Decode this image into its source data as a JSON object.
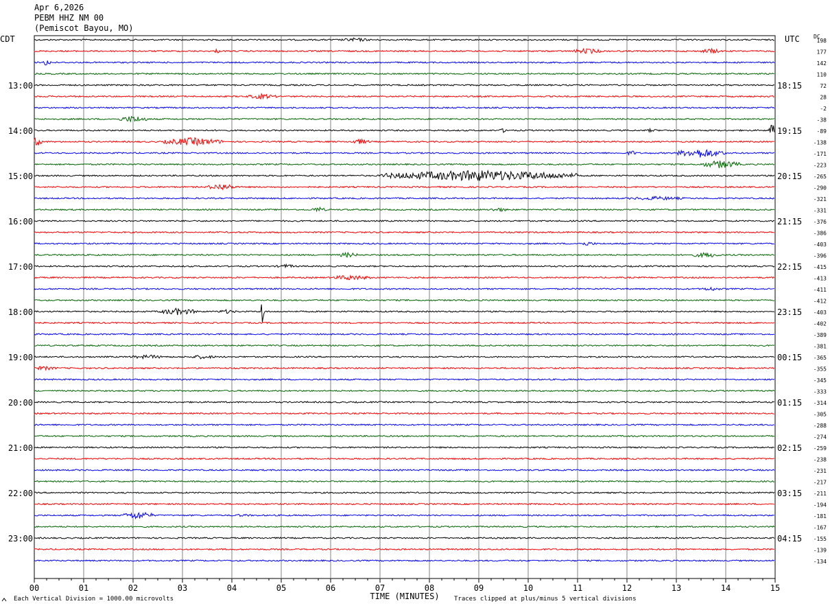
{
  "header": {
    "date": "Apr 6,2026",
    "station": "PEBM HHZ NM 00",
    "location": "(Pemiscot Bayou, MO)"
  },
  "labels": {
    "left_timezone": "CDT",
    "right_timezone": "UTC",
    "dc": "DC",
    "x_axis_title": "TIME (MINUTES)",
    "scale_note": "Each Vertical Division = 1000.00 microvolts",
    "clip_note": "Traces clipped at plus/minus 5 vertical divisions"
  },
  "colors": {
    "trace_cycle": [
      "#000000",
      "#ff0000",
      "#0000ff",
      "#006400"
    ],
    "grid": "#808080"
  },
  "chart_data": {
    "type": "line",
    "title": "PEBM HHZ NM 00",
    "x_ticks": [
      "00",
      "01",
      "02",
      "03",
      "04",
      "05",
      "06",
      "07",
      "08",
      "09",
      "10",
      "11",
      "12",
      "13",
      "14",
      "15"
    ],
    "xlim": [
      0,
      15
    ],
    "left_hour_labels": [
      {
        "trace": 4,
        "label": "13:00"
      },
      {
        "trace": 8,
        "label": "14:00"
      },
      {
        "trace": 12,
        "label": "15:00"
      },
      {
        "trace": 16,
        "label": "16:00"
      },
      {
        "trace": 20,
        "label": "17:00"
      },
      {
        "trace": 24,
        "label": "18:00"
      },
      {
        "trace": 28,
        "label": "19:00"
      },
      {
        "trace": 32,
        "label": "20:00"
      },
      {
        "trace": 36,
        "label": "21:00"
      },
      {
        "trace": 40,
        "label": "22:00"
      },
      {
        "trace": 44,
        "label": "23:00"
      }
    ],
    "right_hour_labels": [
      {
        "trace": 4,
        "label": "18:15"
      },
      {
        "trace": 8,
        "label": "19:15"
      },
      {
        "trace": 12,
        "label": "20:15"
      },
      {
        "trace": 16,
        "label": "21:15"
      },
      {
        "trace": 20,
        "label": "22:15"
      },
      {
        "trace": 24,
        "label": "23:15"
      },
      {
        "trace": 28,
        "label": "00:15"
      },
      {
        "trace": 32,
        "label": "01:15"
      },
      {
        "trace": 36,
        "label": "02:15"
      },
      {
        "trace": 40,
        "label": "03:15"
      },
      {
        "trace": 44,
        "label": "04:15"
      }
    ],
    "dc_offsets": [
      "198",
      "177",
      "142",
      "110",
      "72",
      "28",
      "-2",
      "-38",
      "-89",
      "-138",
      "-171",
      "-223",
      "-265",
      "-290",
      "-321",
      "-331",
      "-376",
      "-386",
      "-403",
      "-396",
      "-415",
      "-413",
      "-411",
      "-412",
      "-403",
      "-402",
      "-389",
      "-381",
      "-365",
      "-355",
      "-345",
      "-333",
      "-314",
      "-305",
      "-288",
      "-274",
      "-259",
      "-238",
      "-231",
      "-217",
      "-211",
      "-194",
      "-181",
      "-167",
      "-155",
      "-139",
      "-134"
    ],
    "events": [
      {
        "trace": 0,
        "minute": 6.5,
        "amp": 3,
        "dur": 0.3
      },
      {
        "trace": 1,
        "minute": 3.7,
        "amp": 4,
        "dur": 0.05
      },
      {
        "trace": 1,
        "minute": 11.2,
        "amp": 4,
        "dur": 0.3
      },
      {
        "trace": 1,
        "minute": 13.7,
        "amp": 4,
        "dur": 0.2
      },
      {
        "trace": 2,
        "minute": 0.25,
        "amp": 5,
        "dur": 0.1
      },
      {
        "trace": 5,
        "minute": 4.6,
        "amp": 4,
        "dur": 0.3
      },
      {
        "trace": 7,
        "minute": 2.0,
        "amp": 5,
        "dur": 0.3
      },
      {
        "trace": 8,
        "minute": 9.5,
        "amp": 3,
        "dur": 0.1
      },
      {
        "trace": 8,
        "minute": 12.5,
        "amp": 3,
        "dur": 0.1
      },
      {
        "trace": 8,
        "minute": 14.95,
        "amp": 11,
        "dur": 0.08
      },
      {
        "trace": 9,
        "minute": 0.05,
        "amp": 6,
        "dur": 0.15
      },
      {
        "trace": 9,
        "minute": 3.2,
        "amp": 6,
        "dur": 0.6
      },
      {
        "trace": 9,
        "minute": 6.6,
        "amp": 4,
        "dur": 0.2
      },
      {
        "trace": 10,
        "minute": 12.1,
        "amp": 4,
        "dur": 0.1
      },
      {
        "trace": 10,
        "minute": 13.5,
        "amp": 7,
        "dur": 0.5
      },
      {
        "trace": 11,
        "minute": 13.9,
        "amp": 6,
        "dur": 0.4
      },
      {
        "trace": 12,
        "minute": 9.0,
        "amp": 8,
        "dur": 2.0
      },
      {
        "trace": 13,
        "minute": 3.8,
        "amp": 5,
        "dur": 0.3
      },
      {
        "trace": 14,
        "minute": 12.6,
        "amp": 3,
        "dur": 0.6
      },
      {
        "trace": 15,
        "minute": 5.75,
        "amp": 4,
        "dur": 0.15
      },
      {
        "trace": 15,
        "minute": 9.4,
        "amp": 3,
        "dur": 0.2
      },
      {
        "trace": 18,
        "minute": 11.2,
        "amp": 3,
        "dur": 0.2
      },
      {
        "trace": 19,
        "minute": 6.35,
        "amp": 4,
        "dur": 0.2
      },
      {
        "trace": 19,
        "minute": 13.6,
        "amp": 4,
        "dur": 0.3
      },
      {
        "trace": 20,
        "minute": 5.1,
        "amp": 3,
        "dur": 0.2
      },
      {
        "trace": 21,
        "minute": 6.4,
        "amp": 4,
        "dur": 0.4
      },
      {
        "trace": 22,
        "minute": 13.7,
        "amp": 3,
        "dur": 0.2
      },
      {
        "trace": 24,
        "minute": 2.9,
        "amp": 5,
        "dur": 0.4
      },
      {
        "trace": 24,
        "minute": 4.62,
        "amp": 26,
        "dur": 0.03
      },
      {
        "trace": 24,
        "minute": 3.9,
        "amp": 3,
        "dur": 0.2
      },
      {
        "trace": 28,
        "minute": 2.3,
        "amp": 3,
        "dur": 0.4
      },
      {
        "trace": 28,
        "minute": 3.4,
        "amp": 3,
        "dur": 0.3
      },
      {
        "trace": 29,
        "minute": 0.2,
        "amp": 3,
        "dur": 0.3
      },
      {
        "trace": 42,
        "minute": 2.1,
        "amp": 6,
        "dur": 0.3
      },
      {
        "trace": 42,
        "minute": 4.2,
        "amp": 2,
        "dur": 0.3
      }
    ]
  }
}
